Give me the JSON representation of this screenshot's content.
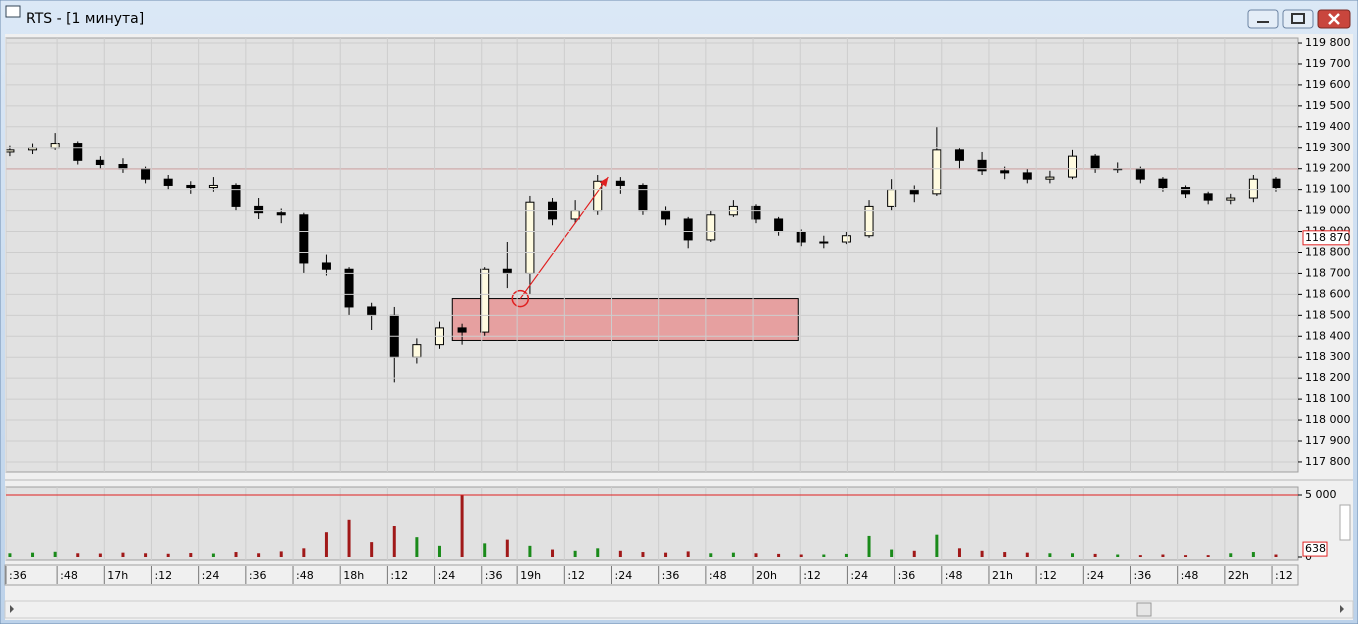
{
  "window": {
    "title": "RTS - [1 минута]"
  },
  "chart_data": {
    "type": "candlestick",
    "x": [
      1,
      6.75,
      12.5,
      18.25,
      24,
      29.75,
      35.5,
      41.25,
      47,
      52.75,
      58.5,
      64.25,
      70,
      75.75,
      81.5,
      87.25,
      93,
      98.75,
      104.5,
      110.25,
      116,
      121.75,
      127.5,
      133.25,
      139,
      144.75,
      150.5,
      156.25,
      162,
      167.75,
      173.5,
      179.25,
      185,
      190.75,
      196.5,
      202.25,
      208,
      213.75,
      219.5,
      225.25,
      231,
      236.75,
      242.5,
      248.25,
      254,
      259.75,
      265.5,
      271.25,
      277,
      282.75,
      288.5,
      294.25,
      300,
      305.75,
      311.5,
      317.25,
      323
    ],
    "open": [
      119280,
      119290,
      119300,
      119320,
      119240,
      119220,
      119200,
      119150,
      119120,
      119110,
      119120,
      119020,
      118990,
      118980,
      118750,
      118720,
      118540,
      118500,
      118300,
      118360,
      118440,
      118420,
      118720,
      118700,
      119040,
      118960,
      119000,
      119140,
      119120,
      119000,
      118960,
      118860,
      118980,
      119020,
      118960,
      118900,
      118850,
      118850,
      118880,
      119020,
      119100,
      119080,
      119290,
      119240,
      119190,
      119180,
      119150,
      119160,
      119260,
      119200,
      119200,
      119150,
      119110,
      119080,
      119050,
      119060,
      119150
    ],
    "high": [
      119310,
      119320,
      119370,
      119330,
      119260,
      119250,
      119210,
      119170,
      119140,
      119160,
      119130,
      119060,
      119010,
      118990,
      118790,
      118730,
      118560,
      118540,
      118390,
      118470,
      118460,
      118730,
      118850,
      119070,
      119060,
      119050,
      119170,
      119160,
      119130,
      119020,
      118970,
      119000,
      119050,
      119030,
      118970,
      118910,
      118880,
      118900,
      119050,
      119150,
      119120,
      119400,
      119300,
      119280,
      119210,
      119200,
      119190,
      119290,
      119270,
      119230,
      119210,
      119160,
      119120,
      119090,
      119080,
      119170,
      119160
    ],
    "low": [
      119260,
      119270,
      119290,
      119220,
      119200,
      119180,
      119130,
      119100,
      119080,
      119090,
      119000,
      118960,
      118940,
      118700,
      118690,
      118500,
      118430,
      118180,
      118270,
      118340,
      118360,
      118400,
      118630,
      118600,
      118930,
      118940,
      118980,
      119080,
      118980,
      118930,
      118820,
      118850,
      118970,
      118940,
      118880,
      118830,
      118820,
      118840,
      118870,
      119000,
      119040,
      119070,
      119200,
      119170,
      119150,
      119130,
      119130,
      119150,
      119180,
      119180,
      119130,
      119090,
      119060,
      119030,
      119030,
      119040,
      119090
    ],
    "close": [
      119290,
      119300,
      119320,
      119240,
      119220,
      119200,
      119150,
      119120,
      119110,
      119120,
      119020,
      118990,
      118980,
      118750,
      118720,
      118540,
      118500,
      118300,
      118360,
      118440,
      118420,
      118720,
      118700,
      119040,
      118960,
      119000,
      119140,
      119120,
      119000,
      118960,
      118860,
      118980,
      119020,
      118960,
      118900,
      118850,
      118850,
      118880,
      119020,
      119100,
      119080,
      119290,
      119240,
      119190,
      119180,
      119150,
      119160,
      119260,
      119200,
      119200,
      119150,
      119110,
      119080,
      119050,
      119060,
      119150,
      119110
    ],
    "volume": [
      300,
      350,
      420,
      300,
      280,
      350,
      300,
      260,
      320,
      280,
      400,
      300,
      450,
      700,
      2000,
      3000,
      1200,
      2500,
      1600,
      900,
      5000,
      1100,
      1400,
      900,
      600,
      500,
      700,
      500,
      400,
      350,
      450,
      300,
      350,
      300,
      250,
      200,
      200,
      250,
      1700,
      600,
      500,
      1800,
      700,
      500,
      400,
      350,
      300,
      300,
      250,
      200,
      150,
      200,
      150,
      150,
      300,
      400,
      200
    ],
    "xlim": [
      0,
      328.6
    ],
    "xticks": [
      {
        "value": 0,
        "label": ":36"
      },
      {
        "value": 13,
        "label": ":48"
      },
      {
        "value": 25,
        "label": "17h"
      },
      {
        "value": 37,
        "label": ":12"
      },
      {
        "value": 49,
        "label": ":24"
      },
      {
        "value": 61,
        "label": ":36"
      },
      {
        "value": 73,
        "label": ":48"
      },
      {
        "value": 85,
        "label": "18h"
      },
      {
        "value": 97,
        "label": ":12"
      },
      {
        "value": 109,
        "label": ":24"
      },
      {
        "value": 121,
        "label": ":36"
      },
      {
        "value": 130,
        "label": "19h"
      },
      {
        "value": 142,
        "label": ":12"
      },
      {
        "value": 154,
        "label": ":24"
      },
      {
        "value": 166,
        "label": ":36"
      },
      {
        "value": 178,
        "label": ":48"
      },
      {
        "value": 190,
        "label": "20h"
      },
      {
        "value": 202,
        "label": ":12"
      },
      {
        "value": 214,
        "label": ":24"
      },
      {
        "value": 226,
        "label": ":36"
      },
      {
        "value": 238,
        "label": ":48"
      },
      {
        "value": 250,
        "label": "21h"
      },
      {
        "value": 262,
        "label": ":12"
      },
      {
        "value": 274,
        "label": ":24"
      },
      {
        "value": 286,
        "label": ":36"
      },
      {
        "value": 298,
        "label": ":48"
      },
      {
        "value": 310,
        "label": "22h"
      },
      {
        "value": 322,
        "label": ":12"
      }
    ],
    "ylim": [
      117752,
      119824
    ],
    "yticks": [
      {
        "value": 117800,
        "label": "117 800"
      },
      {
        "value": 117900,
        "label": "117 900"
      },
      {
        "value": 118000,
        "label": "118 000"
      },
      {
        "value": 118100,
        "label": "118 100"
      },
      {
        "value": 118200,
        "label": "118 200"
      },
      {
        "value": 118300,
        "label": "118 300"
      },
      {
        "value": 118400,
        "label": "118 400"
      },
      {
        "value": 118500,
        "label": "118 500"
      },
      {
        "value": 118600,
        "label": "118 600"
      },
      {
        "value": 118700,
        "label": "118 700"
      },
      {
        "value": 118800,
        "label": "118 800"
      },
      {
        "value": 118900,
        "label": "118 900"
      },
      {
        "value": 119000,
        "label": "119 000"
      },
      {
        "value": 119100,
        "label": "119 100"
      },
      {
        "value": 119200,
        "label": "119 200"
      },
      {
        "value": 119300,
        "label": "119 300"
      },
      {
        "value": 119400,
        "label": "119 400"
      },
      {
        "value": 119500,
        "label": "119 500"
      },
      {
        "value": 119600,
        "label": "119 600"
      },
      {
        "value": 119700,
        "label": "119 700"
      },
      {
        "value": 119800,
        "label": "119 800"
      }
    ],
    "volume_ylim": [
      0,
      5000
    ],
    "volume_yticks": [
      0,
      {
        "value": 5000,
        "label": "5 000"
      }
    ],
    "level_line": 119200,
    "last_price": {
      "value": 118870,
      "label": "118 870"
    },
    "last_volume": 638,
    "zone": {
      "x": [
        113.5,
        201.5
      ],
      "y": [
        118380,
        118580
      ]
    },
    "arrow": {
      "x": [
        130.8,
        153.2
      ],
      "y": [
        118580,
        119160
      ]
    },
    "grid": true,
    "up_color": "#fffbe0",
    "down_color": "#000000",
    "volume_up_color": "#1a8a1a",
    "volume_down_color": "#a01818",
    "level_color": "#e02020"
  }
}
